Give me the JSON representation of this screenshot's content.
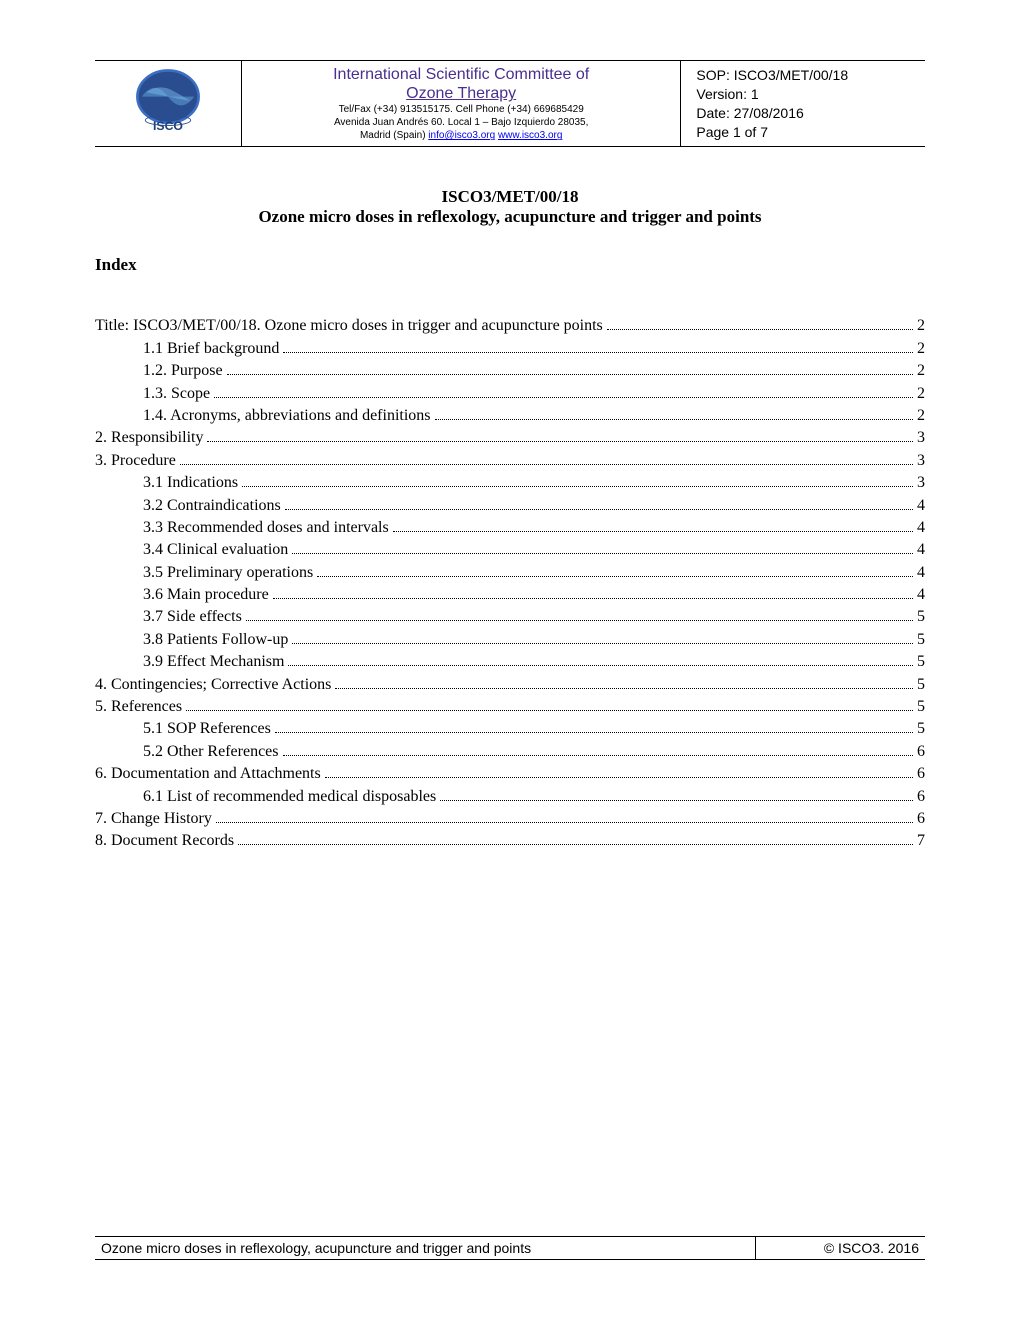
{
  "header": {
    "org_line1": "International Scientific Committee of",
    "org_line2": "Ozone Therapy",
    "contact_line1": "Tel/Fax (+34) 913515175. Cell Phone (+34) 669685429",
    "contact_line2": "Avenida Juan Andrés 60. Local 1 – Bajo Izquierdo 28035,",
    "contact_line3_prefix": "Madrid (Spain) ",
    "contact_email": "info@isco3.org",
    "contact_web": "www.isco3.org",
    "sop_line": "SOP: ISCO3/MET/00/18",
    "version_line": "Version: 1",
    "date_line": "Date: 27/08/2016",
    "page_line": "Page 1 of 7"
  },
  "document": {
    "code": "ISCO3/MET/00/18",
    "title": "Ozone micro doses in reflexology, acupuncture and trigger and points",
    "index_heading": "Index"
  },
  "toc": [
    {
      "label": "Title: ISCO3/MET/00/18. Ozone micro doses in trigger and acupuncture points",
      "page": "2",
      "indent": 0
    },
    {
      "label": "1.1 Brief background",
      "page": "2",
      "indent": 1
    },
    {
      "label": "1.2. Purpose",
      "page": "2",
      "indent": 1
    },
    {
      "label": "1.3. Scope",
      "page": "2",
      "indent": 1
    },
    {
      "label": "1.4. Acronyms, abbreviations and definitions",
      "page": "2",
      "indent": 1
    },
    {
      "label": "2. Responsibility",
      "page": "3",
      "indent": 0
    },
    {
      "label": "3. Procedure",
      "page": "3",
      "indent": 0
    },
    {
      "label": "3.1 Indications",
      "page": "3",
      "indent": 1
    },
    {
      "label": "3.2 Contraindications",
      "page": "4",
      "indent": 1
    },
    {
      "label": "3.3 Recommended doses and intervals",
      "page": "4",
      "indent": 1
    },
    {
      "label": "3.4 Clinical evaluation",
      "page": "4",
      "indent": 1
    },
    {
      "label": "3.5 Preliminary operations",
      "page": "4",
      "indent": 1
    },
    {
      "label": "3.6 Main procedure",
      "page": "4",
      "indent": 1
    },
    {
      "label": "3.7 Side effects",
      "page": "5",
      "indent": 1
    },
    {
      "label": "3.8 Patients Follow-up",
      "page": "5",
      "indent": 1
    },
    {
      "label": "3.9 Effect Mechanism",
      "page": "5",
      "indent": 1
    },
    {
      "label": "4. Contingencies; Corrective Actions",
      "page": "5",
      "indent": 0
    },
    {
      "label": "5. References",
      "page": "5",
      "indent": 0
    },
    {
      "label": "5.1 SOP References",
      "page": "5",
      "indent": 1
    },
    {
      "label": "5.2 Other References",
      "page": "6",
      "indent": 1
    },
    {
      "label": "6. Documentation and Attachments",
      "page": "6",
      "indent": 0
    },
    {
      "label": "6.1 List of recommended medical disposables",
      "page": "6",
      "indent": 1
    },
    {
      "label": "7. Change History",
      "page": "6",
      "indent": 0
    },
    {
      "label": "8. Document Records",
      "page": "7",
      "indent": 0
    }
  ],
  "footer": {
    "left": "Ozone micro doses in reflexology, acupuncture and trigger and points",
    "right": "© ISCO3. 2016"
  },
  "colors": {
    "org_title": "#4a2f8f",
    "link": "#0000ee",
    "text": "#000000",
    "background": "#ffffff"
  }
}
